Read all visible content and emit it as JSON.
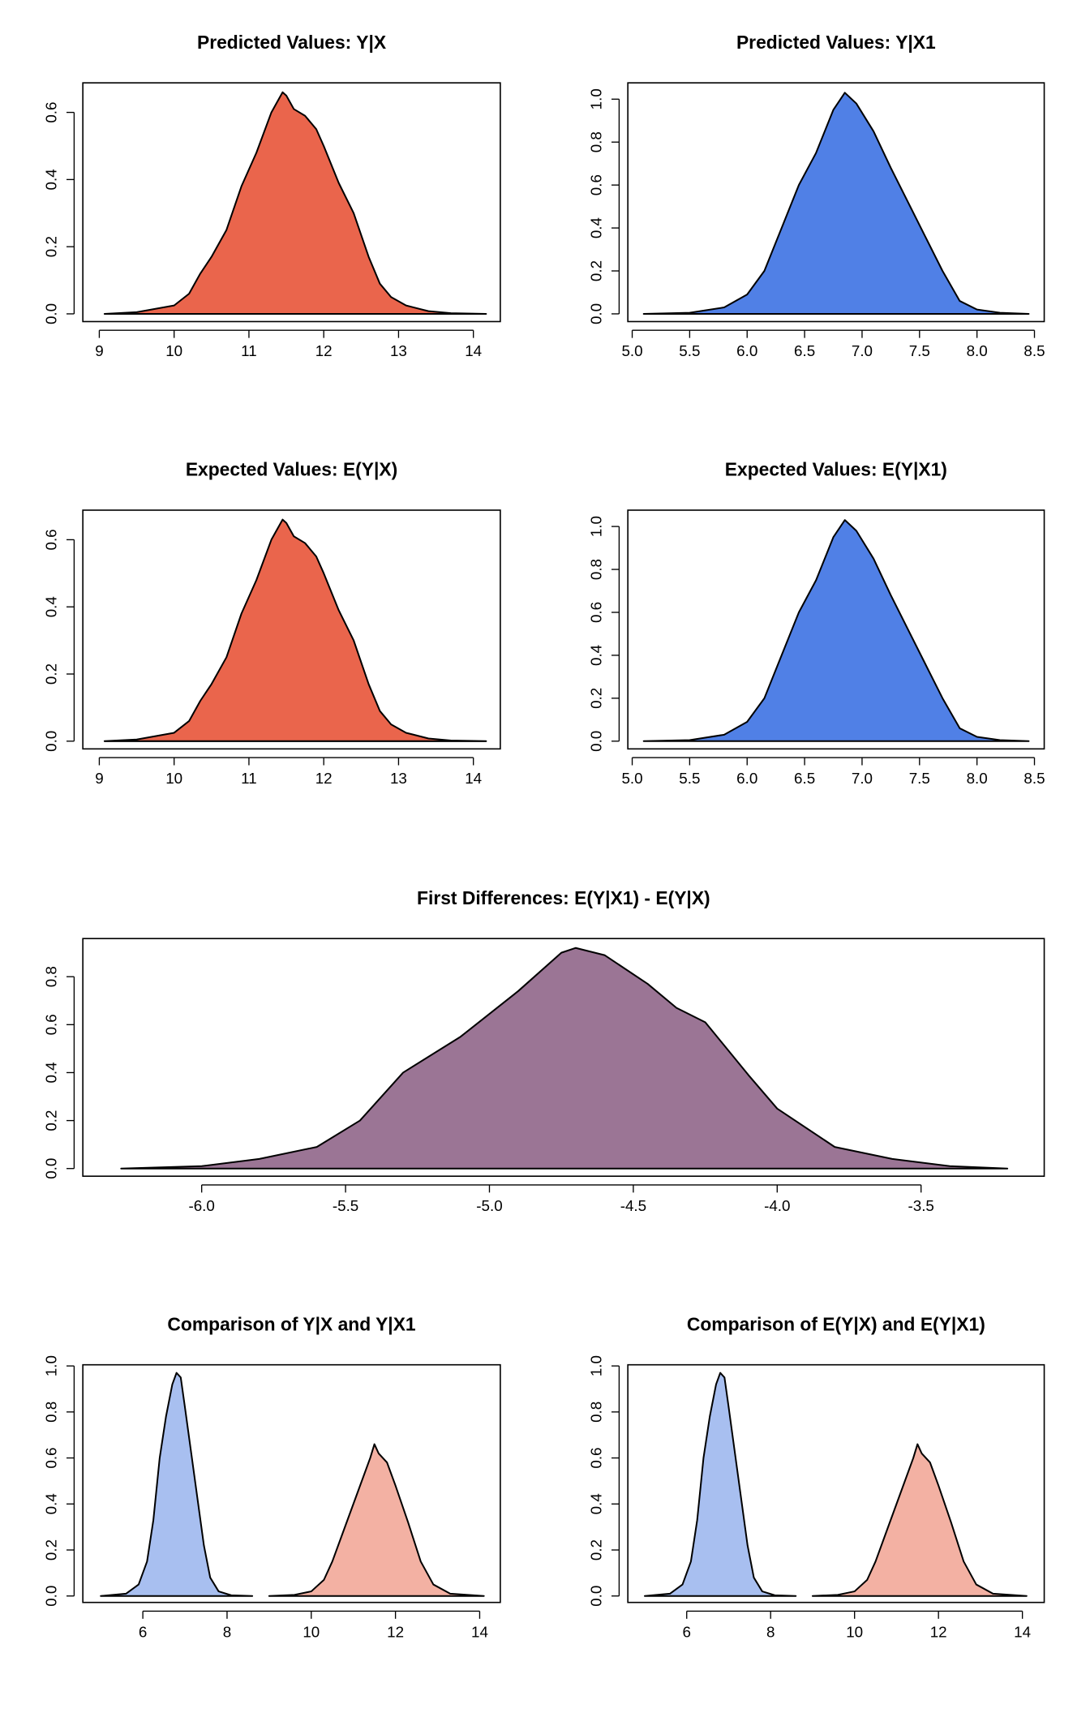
{
  "chart_data": [
    {
      "type": "area",
      "title": "Predicted Values: Y|X",
      "color": "#EA654C",
      "x": [
        9.07,
        9.5,
        10.0,
        10.2,
        10.35,
        10.5,
        10.7,
        10.9,
        11.1,
        11.3,
        11.45,
        11.5,
        11.6,
        11.75,
        11.9,
        12.0,
        12.2,
        12.4,
        12.6,
        12.75,
        12.9,
        13.1,
        13.4,
        13.7,
        14.17
      ],
      "values": [
        0,
        0.005,
        0.025,
        0.06,
        0.12,
        0.17,
        0.25,
        0.38,
        0.48,
        0.6,
        0.66,
        0.65,
        0.61,
        0.59,
        0.55,
        0.5,
        0.39,
        0.3,
        0.17,
        0.09,
        0.05,
        0.025,
        0.008,
        0.002,
        0
      ],
      "xlim": [
        8.78,
        14.36
      ],
      "ylim": [
        -0.023,
        0.688
      ],
      "xticks": [
        9,
        10,
        11,
        12,
        13,
        14
      ],
      "yticks": [
        {
          "value": 0,
          "label": "0.0"
        },
        {
          "value": 0.2,
          "label": "0.2"
        },
        {
          "value": 0.4,
          "label": "0.4"
        },
        {
          "value": 0.6,
          "label": "0.6"
        }
      ]
    },
    {
      "type": "area",
      "title": "Predicted Values: Y|X1",
      "color": "#5080E6",
      "x": [
        5.1,
        5.5,
        5.8,
        6.0,
        6.15,
        6.3,
        6.45,
        6.6,
        6.75,
        6.85,
        6.95,
        7.1,
        7.25,
        7.4,
        7.55,
        7.7,
        7.85,
        8.0,
        8.2,
        8.45
      ],
      "values": [
        0,
        0.005,
        0.03,
        0.09,
        0.2,
        0.4,
        0.6,
        0.75,
        0.95,
        1.03,
        0.98,
        0.85,
        0.68,
        0.52,
        0.36,
        0.2,
        0.06,
        0.02,
        0.005,
        0
      ],
      "xlim": [
        4.962,
        8.585
      ],
      "ylim": [
        -0.036,
        1.076
      ],
      "xticks": [
        {
          "value": 5,
          "label": "5.0"
        },
        5.5,
        {
          "value": 6,
          "label": "6.0"
        },
        6.5,
        {
          "value": 7,
          "label": "7.0"
        },
        7.5,
        {
          "value": 8,
          "label": "8.0"
        },
        8.5
      ],
      "yticks": [
        {
          "value": 0,
          "label": "0.0"
        },
        {
          "value": 0.2,
          "label": "0.2"
        },
        {
          "value": 0.4,
          "label": "0.4"
        },
        {
          "value": 0.6,
          "label": "0.6"
        },
        {
          "value": 0.8,
          "label": "0.8"
        },
        {
          "value": 1,
          "label": "1.0"
        }
      ]
    },
    {
      "type": "area",
      "title": "Expected Values: E(Y|X)",
      "color": "#EA654C",
      "x": [
        9.07,
        9.5,
        10.0,
        10.2,
        10.35,
        10.5,
        10.7,
        10.9,
        11.1,
        11.3,
        11.45,
        11.5,
        11.6,
        11.75,
        11.9,
        12.0,
        12.2,
        12.4,
        12.6,
        12.75,
        12.9,
        13.1,
        13.4,
        13.7,
        14.17
      ],
      "values": [
        0,
        0.005,
        0.025,
        0.06,
        0.12,
        0.17,
        0.25,
        0.38,
        0.48,
        0.6,
        0.66,
        0.65,
        0.61,
        0.59,
        0.55,
        0.5,
        0.39,
        0.3,
        0.17,
        0.09,
        0.05,
        0.025,
        0.008,
        0.002,
        0
      ],
      "xlim": [
        8.78,
        14.36
      ],
      "ylim": [
        -0.023,
        0.688
      ],
      "xticks": [
        9,
        10,
        11,
        12,
        13,
        14
      ],
      "yticks": [
        {
          "value": 0,
          "label": "0.0"
        },
        {
          "value": 0.2,
          "label": "0.2"
        },
        {
          "value": 0.4,
          "label": "0.4"
        },
        {
          "value": 0.6,
          "label": "0.6"
        }
      ]
    },
    {
      "type": "area",
      "title": "Expected Values: E(Y|X1)",
      "color": "#5080E6",
      "x": [
        5.1,
        5.5,
        5.8,
        6.0,
        6.15,
        6.3,
        6.45,
        6.6,
        6.75,
        6.85,
        6.95,
        7.1,
        7.25,
        7.4,
        7.55,
        7.7,
        7.85,
        8.0,
        8.2,
        8.45
      ],
      "values": [
        0,
        0.005,
        0.03,
        0.09,
        0.2,
        0.4,
        0.6,
        0.75,
        0.95,
        1.03,
        0.98,
        0.85,
        0.68,
        0.52,
        0.36,
        0.2,
        0.06,
        0.02,
        0.005,
        0
      ],
      "xlim": [
        4.962,
        8.585
      ],
      "ylim": [
        -0.036,
        1.076
      ],
      "xticks": [
        {
          "value": 5,
          "label": "5.0"
        },
        5.5,
        {
          "value": 6,
          "label": "6.0"
        },
        6.5,
        {
          "value": 7,
          "label": "7.0"
        },
        7.5,
        {
          "value": 8,
          "label": "8.0"
        },
        8.5
      ],
      "yticks": [
        {
          "value": 0,
          "label": "0.0"
        },
        {
          "value": 0.2,
          "label": "0.2"
        },
        {
          "value": 0.4,
          "label": "0.4"
        },
        {
          "value": 0.6,
          "label": "0.6"
        },
        {
          "value": 0.8,
          "label": "0.8"
        },
        {
          "value": 1,
          "label": "1.0"
        }
      ]
    },
    {
      "type": "area",
      "title": "First Differences: E(Y|X1) - E(Y|X)",
      "color": "#9B7595",
      "x": [
        -6.28,
        -6.0,
        -5.8,
        -5.6,
        -5.45,
        -5.3,
        -5.1,
        -4.9,
        -4.75,
        -4.7,
        -4.6,
        -4.45,
        -4.35,
        -4.25,
        -4.1,
        -4.0,
        -3.8,
        -3.6,
        -3.4,
        -3.2
      ],
      "values": [
        0,
        0.01,
        0.04,
        0.09,
        0.2,
        0.4,
        0.55,
        0.74,
        0.9,
        0.92,
        0.89,
        0.77,
        0.67,
        0.61,
        0.39,
        0.25,
        0.09,
        0.04,
        0.01,
        0
      ],
      "xlim": [
        -6.413,
        -3.072
      ],
      "ylim": [
        -0.032,
        0.959
      ],
      "xticks": [
        {
          "value": -6,
          "label": "-6.0"
        },
        -5.5,
        {
          "value": -5,
          "label": "-5.0"
        },
        -4.5,
        {
          "value": -4,
          "label": "-4.0"
        },
        -3.5
      ],
      "yticks": [
        {
          "value": 0,
          "label": "0.0"
        },
        {
          "value": 0.2,
          "label": "0.2"
        },
        {
          "value": 0.4,
          "label": "0.4"
        },
        {
          "value": 0.6,
          "label": "0.6"
        },
        {
          "value": 0.8,
          "label": "0.8"
        }
      ]
    },
    {
      "type": "area",
      "title": "Comparison of Y|X and Y|X1",
      "series": [
        {
          "color": "#A8BFF0",
          "x": [
            5.0,
            5.6,
            5.9,
            6.1,
            6.25,
            6.4,
            6.55,
            6.7,
            6.8,
            6.9,
            7.0,
            7.15,
            7.3,
            7.45,
            7.6,
            7.8,
            8.1,
            8.6
          ],
          "values": [
            0,
            0.01,
            0.05,
            0.15,
            0.33,
            0.6,
            0.78,
            0.92,
            0.97,
            0.95,
            0.82,
            0.62,
            0.42,
            0.22,
            0.08,
            0.02,
            0.003,
            0
          ]
        },
        {
          "color": "#F3B1A3",
          "x": [
            9.0,
            9.6,
            10.0,
            10.3,
            10.5,
            10.8,
            11.1,
            11.4,
            11.5,
            11.6,
            11.8,
            12.0,
            12.3,
            12.6,
            12.9,
            13.3,
            14.1
          ],
          "values": [
            0,
            0.005,
            0.02,
            0.07,
            0.15,
            0.3,
            0.45,
            0.6,
            0.66,
            0.62,
            0.58,
            0.48,
            0.32,
            0.15,
            0.05,
            0.01,
            0
          ]
        }
      ],
      "xlim": [
        4.575,
        14.49
      ],
      "ylim": [
        -0.028,
        1.005
      ],
      "xticks": [
        6,
        8,
        10,
        12,
        14
      ],
      "yticks": [
        {
          "value": 0,
          "label": "0.0"
        },
        {
          "value": 0.2,
          "label": "0.2"
        },
        {
          "value": 0.4,
          "label": "0.4"
        },
        {
          "value": 0.6,
          "label": "0.6"
        },
        {
          "value": 0.8,
          "label": "0.8"
        },
        {
          "value": 1,
          "label": "1.0"
        }
      ]
    },
    {
      "type": "area",
      "title": "Comparison of E(Y|X) and E(Y|X1)",
      "series": [
        {
          "color": "#A8BFF0",
          "x": [
            5.0,
            5.6,
            5.9,
            6.1,
            6.25,
            6.4,
            6.55,
            6.7,
            6.8,
            6.9,
            7.0,
            7.15,
            7.3,
            7.45,
            7.6,
            7.8,
            8.1,
            8.6
          ],
          "values": [
            0,
            0.01,
            0.05,
            0.15,
            0.33,
            0.6,
            0.78,
            0.92,
            0.97,
            0.95,
            0.82,
            0.62,
            0.42,
            0.22,
            0.08,
            0.02,
            0.003,
            0
          ]
        },
        {
          "color": "#F3B1A3",
          "x": [
            9.0,
            9.6,
            10.0,
            10.3,
            10.5,
            10.8,
            11.1,
            11.4,
            11.5,
            11.6,
            11.8,
            12.0,
            12.3,
            12.6,
            12.9,
            13.3,
            14.1
          ],
          "values": [
            0,
            0.005,
            0.02,
            0.07,
            0.15,
            0.3,
            0.45,
            0.6,
            0.66,
            0.62,
            0.58,
            0.48,
            0.32,
            0.15,
            0.05,
            0.01,
            0
          ]
        }
      ],
      "xlim": [
        4.597,
        14.52
      ],
      "ylim": [
        -0.028,
        1.005
      ],
      "xticks": [
        6,
        8,
        10,
        12,
        14
      ],
      "yticks": [
        {
          "value": 0,
          "label": "0.0"
        },
        {
          "value": 0.2,
          "label": "0.2"
        },
        {
          "value": 0.4,
          "label": "0.4"
        },
        {
          "value": 0.6,
          "label": "0.6"
        },
        {
          "value": 0.8,
          "label": "0.8"
        },
        {
          "value": 1,
          "label": "1.0"
        }
      ]
    }
  ]
}
